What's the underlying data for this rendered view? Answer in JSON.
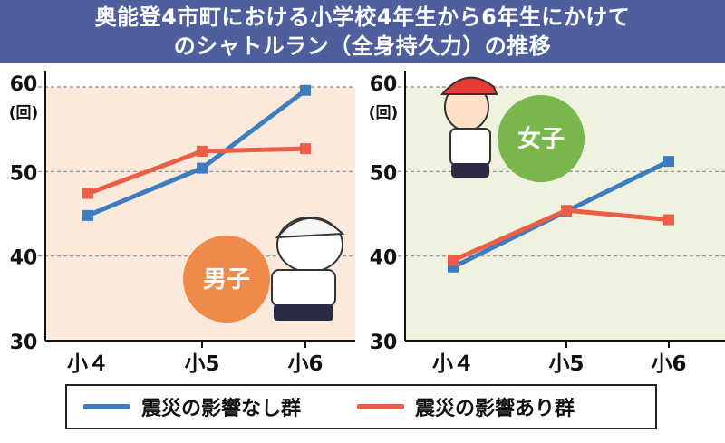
{
  "header": {
    "title_line_1": "奥能登4市町における小学校4年生から6年生にかけて",
    "title_line_2": "のシャトルラン（全身持久力）の推移"
  },
  "colors": {
    "title_bg": "#4f5f9e",
    "series_no_impact": "#3e7cc0",
    "series_impact": "#ec5e45",
    "boys_panel_bg": "#fbe9dc",
    "girls_panel_bg": "#eef2df",
    "boys_badge": "#f08a4b",
    "girls_badge": "#79b64c"
  },
  "legend": {
    "items": [
      {
        "label": "震災の影響なし群",
        "color": "#3e7cc0"
      },
      {
        "label": "震災の影響あり群",
        "color": "#ec5e45"
      }
    ]
  },
  "chart_data": [
    {
      "type": "line",
      "panel": "男子",
      "badge": "男子",
      "categories": [
        "小４",
        "小5",
        "小6"
      ],
      "series": [
        {
          "name": "震災の影響なし群",
          "values": [
            44.8,
            50.4,
            59.6
          ]
        },
        {
          "name": "震災の影響あり群",
          "values": [
            47.4,
            52.4,
            52.7
          ]
        }
      ],
      "yticks": [
        "30",
        "40",
        "50",
        "60"
      ],
      "yunit": "(回)",
      "ylim": [
        30,
        60
      ],
      "grid": "dashed horizontal at 40, 50, 60",
      "icon": "running-boy-illustration-icon"
    },
    {
      "type": "line",
      "panel": "女子",
      "badge": "女子",
      "categories": [
        "小４",
        "小5",
        "小6"
      ],
      "series": [
        {
          "name": "震災の影響なし群",
          "values": [
            38.7,
            45.3,
            51.2
          ]
        },
        {
          "name": "震災の影響あり群",
          "values": [
            39.5,
            45.4,
            44.3
          ]
        }
      ],
      "yticks": [
        "30",
        "40",
        "50",
        "60"
      ],
      "yunit": "(回)",
      "ylim": [
        30,
        60
      ],
      "grid": "dashed horizontal at 40, 50, 60",
      "icon": "running-girl-illustration-icon"
    }
  ]
}
